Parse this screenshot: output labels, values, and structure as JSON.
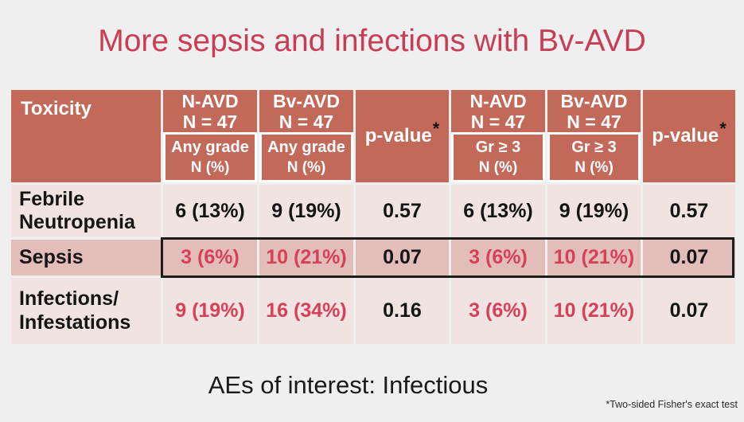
{
  "slide": {
    "title": "More sepsis and infections with Bv-AVD",
    "caption": "AEs of interest: Infectious",
    "footnote": "*Two-sided Fisher's exact test"
  },
  "colors": {
    "background": "#EFEFEF",
    "title_red": "#C83D54",
    "header_bg": "#C2695A",
    "row_light_bg": "#F0E3E1",
    "row_highlight_bg": "#E2BDB9",
    "value_red": "#D64059",
    "text_dark": "#151515"
  },
  "table": {
    "toxicity_header": "Toxicity",
    "pvalue_label": "p-value",
    "pvalue_asterisk": "*",
    "arm_headers": [
      {
        "name": "N-AVD",
        "n": "N = 47",
        "grade": "Any grade",
        "metric": "N (%)"
      },
      {
        "name": "Bv-AVD",
        "n": "N = 47",
        "grade": "Any grade",
        "metric": "N (%)"
      },
      {
        "name": "N-AVD",
        "n": "N = 47",
        "grade": "Gr ≥ 3",
        "metric": "N (%)"
      },
      {
        "name": "Bv-AVD",
        "n": "N = 47",
        "grade": "Gr ≥ 3",
        "metric": "N (%)"
      }
    ],
    "rows": [
      {
        "label_line1": "Febrile",
        "label_line2": "Neutropenia",
        "any_navd": "6 (13%)",
        "any_bvavd": "9 (19%)",
        "p_any": "0.57",
        "gr3_navd": "6 (13%)",
        "gr3_bvavd": "9 (19%)",
        "p_gr3": "0.57"
      },
      {
        "label_line1": "Sepsis",
        "label_line2": "",
        "any_navd": "3 (6%)",
        "any_bvavd": "10 (21%)",
        "p_any": "0.07",
        "gr3_navd": "3 (6%)",
        "gr3_bvavd": "10 (21%)",
        "p_gr3": "0.07"
      },
      {
        "label_line1": "Infections/",
        "label_line2": "Infestations",
        "any_navd": "9 (19%)",
        "any_bvavd": "16 (34%)",
        "p_any": "0.16",
        "gr3_navd": "3 (6%)",
        "gr3_bvavd": "10 (21%)",
        "p_gr3": "0.07"
      }
    ]
  }
}
